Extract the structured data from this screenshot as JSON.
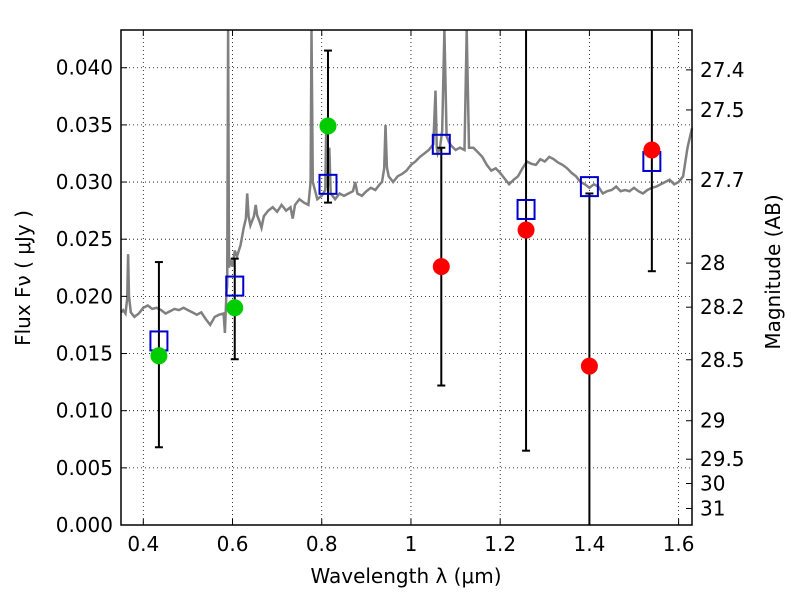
{
  "chart_data": {
    "type": "scatter",
    "xlabel": "Wavelength  λ (μm)",
    "ylabel": "Flux  Fν  ( μJy )",
    "y2label": "Magnitude (AB)",
    "xlim": [
      0.35,
      1.63
    ],
    "ylim": [
      0.0,
      0.0433
    ],
    "x_ticks": [
      0.4,
      0.6,
      0.8,
      1.0,
      1.2,
      1.4,
      1.6
    ],
    "x_tick_labels": [
      "0.4",
      "0.6",
      "0.8",
      "1",
      "1.2",
      "1.4",
      "1.6"
    ],
    "y_ticks": [
      0.0,
      0.005,
      0.01,
      0.015,
      0.02,
      0.025,
      0.03,
      0.035,
      0.04
    ],
    "y_tick_labels": [
      "0.000",
      "0.005",
      "0.010",
      "0.015",
      "0.020",
      "0.025",
      "0.030",
      "0.035",
      "0.040"
    ],
    "mag_ticks": [
      27.4,
      27.5,
      27.7,
      28,
      28.2,
      28.5,
      29,
      29.5,
      30,
      31
    ],
    "mag_tick_labels": [
      "27.4",
      "27.5",
      "27.7",
      "28",
      "28.2",
      "28.5",
      "29",
      "29.5",
      "30",
      "31"
    ],
    "grid": true,
    "colors": {
      "spectrum": "#808080",
      "model_box": "#0000cc",
      "green_points": "#00cc00",
      "red_points": "#ff0000",
      "errorbar": "#000000"
    },
    "spectrum": [
      [
        0.35,
        0.0186
      ],
      [
        0.355,
        0.0188
      ],
      [
        0.36,
        0.0185
      ],
      [
        0.364,
        0.0198
      ],
      [
        0.366,
        0.0237
      ],
      [
        0.368,
        0.02
      ],
      [
        0.372,
        0.0186
      ],
      [
        0.38,
        0.0182
      ],
      [
        0.39,
        0.0185
      ],
      [
        0.4,
        0.019
      ],
      [
        0.41,
        0.0192
      ],
      [
        0.42,
        0.0189
      ],
      [
        0.43,
        0.019
      ],
      [
        0.44,
        0.0188
      ],
      [
        0.45,
        0.0185
      ],
      [
        0.46,
        0.0187
      ],
      [
        0.47,
        0.0189
      ],
      [
        0.48,
        0.0188
      ],
      [
        0.49,
        0.019
      ],
      [
        0.5,
        0.0188
      ],
      [
        0.51,
        0.0186
      ],
      [
        0.52,
        0.0184
      ],
      [
        0.53,
        0.0186
      ],
      [
        0.54,
        0.018
      ],
      [
        0.55,
        0.0175
      ],
      [
        0.56,
        0.0182
      ],
      [
        0.57,
        0.0184
      ],
      [
        0.58,
        0.0185
      ],
      [
        0.583,
        0.0168
      ],
      [
        0.586,
        0.02
      ],
      [
        0.588,
        0.021
      ],
      [
        0.59,
        0.0433
      ],
      [
        0.592,
        0.0225
      ],
      [
        0.595,
        0.0232
      ],
      [
        0.6,
        0.0226
      ],
      [
        0.605,
        0.024
      ],
      [
        0.61,
        0.0235
      ],
      [
        0.618,
        0.0245
      ],
      [
        0.625,
        0.026
      ],
      [
        0.63,
        0.0268
      ],
      [
        0.633,
        0.029
      ],
      [
        0.636,
        0.027
      ],
      [
        0.64,
        0.0262
      ],
      [
        0.648,
        0.027
      ],
      [
        0.652,
        0.028
      ],
      [
        0.655,
        0.0271
      ],
      [
        0.66,
        0.0266
      ],
      [
        0.665,
        0.026
      ],
      [
        0.67,
        0.027
      ],
      [
        0.68,
        0.0275
      ],
      [
        0.69,
        0.0278
      ],
      [
        0.7,
        0.0274
      ],
      [
        0.71,
        0.028
      ],
      [
        0.72,
        0.0275
      ],
      [
        0.73,
        0.0278
      ],
      [
        0.735,
        0.0268
      ],
      [
        0.74,
        0.028
      ],
      [
        0.75,
        0.0285
      ],
      [
        0.76,
        0.0282
      ],
      [
        0.77,
        0.028
      ],
      [
        0.775,
        0.03
      ],
      [
        0.777,
        0.0433
      ],
      [
        0.78,
        0.03
      ],
      [
        0.79,
        0.0285
      ],
      [
        0.8,
        0.0288
      ],
      [
        0.808,
        0.0293
      ],
      [
        0.81,
        0.0348
      ],
      [
        0.812,
        0.0295
      ],
      [
        0.815,
        0.0298
      ],
      [
        0.817,
        0.033
      ],
      [
        0.82,
        0.029
      ],
      [
        0.83,
        0.0285
      ],
      [
        0.84,
        0.029
      ],
      [
        0.85,
        0.0288
      ],
      [
        0.86,
        0.029
      ],
      [
        0.87,
        0.0292
      ],
      [
        0.875,
        0.03
      ],
      [
        0.88,
        0.029
      ],
      [
        0.89,
        0.0288
      ],
      [
        0.9,
        0.0292
      ],
      [
        0.91,
        0.0295
      ],
      [
        0.92,
        0.0293
      ],
      [
        0.93,
        0.0298
      ],
      [
        0.935,
        0.03
      ],
      [
        0.94,
        0.0312
      ],
      [
        0.943,
        0.035
      ],
      [
        0.946,
        0.0313
      ],
      [
        0.95,
        0.0305
      ],
      [
        0.96,
        0.03
      ],
      [
        0.97,
        0.0305
      ],
      [
        0.98,
        0.0307
      ],
      [
        0.99,
        0.031
      ],
      [
        1.0,
        0.0315
      ],
      [
        1.01,
        0.0318
      ],
      [
        1.02,
        0.0322
      ],
      [
        1.03,
        0.0325
      ],
      [
        1.04,
        0.0328
      ],
      [
        1.05,
        0.0333
      ],
      [
        1.055,
        0.038
      ],
      [
        1.058,
        0.033
      ],
      [
        1.06,
        0.0325
      ],
      [
        1.065,
        0.033
      ],
      [
        1.07,
        0.0345
      ],
      [
        1.075,
        0.0433
      ],
      [
        1.08,
        0.034
      ],
      [
        1.085,
        0.0335
      ],
      [
        1.09,
        0.0332
      ],
      [
        1.1,
        0.0328
      ],
      [
        1.11,
        0.033
      ],
      [
        1.12,
        0.0328
      ],
      [
        1.125,
        0.0433
      ],
      [
        1.13,
        0.033
      ],
      [
        1.14,
        0.033
      ],
      [
        1.15,
        0.0326
      ],
      [
        1.16,
        0.0322
      ],
      [
        1.17,
        0.0315
      ],
      [
        1.18,
        0.031
      ],
      [
        1.19,
        0.0312
      ],
      [
        1.2,
        0.0308
      ],
      [
        1.21,
        0.0303
      ],
      [
        1.22,
        0.0298
      ],
      [
        1.23,
        0.0302
      ],
      [
        1.24,
        0.0305
      ],
      [
        1.25,
        0.0312
      ],
      [
        1.26,
        0.0318
      ],
      [
        1.27,
        0.0316
      ],
      [
        1.28,
        0.0315
      ],
      [
        1.29,
        0.032
      ],
      [
        1.3,
        0.0318
      ],
      [
        1.31,
        0.0322
      ],
      [
        1.32,
        0.032
      ],
      [
        1.33,
        0.0317
      ],
      [
        1.34,
        0.0315
      ],
      [
        1.35,
        0.0312
      ],
      [
        1.36,
        0.0308
      ],
      [
        1.37,
        0.0305
      ],
      [
        1.38,
        0.03
      ],
      [
        1.39,
        0.0298
      ],
      [
        1.4,
        0.0295
      ],
      [
        1.41,
        0.0298
      ],
      [
        1.42,
        0.0296
      ],
      [
        1.43,
        0.029
      ],
      [
        1.44,
        0.0292
      ],
      [
        1.45,
        0.0293
      ],
      [
        1.46,
        0.0296
      ],
      [
        1.47,
        0.0292
      ],
      [
        1.48,
        0.0293
      ],
      [
        1.49,
        0.0292
      ],
      [
        1.5,
        0.0295
      ],
      [
        1.51,
        0.0292
      ],
      [
        1.52,
        0.029
      ],
      [
        1.53,
        0.0293
      ],
      [
        1.54,
        0.0295
      ],
      [
        1.55,
        0.0296
      ],
      [
        1.56,
        0.0298
      ],
      [
        1.57,
        0.03
      ],
      [
        1.58,
        0.0302
      ],
      [
        1.59,
        0.0298
      ],
      [
        1.6,
        0.03
      ],
      [
        1.61,
        0.0305
      ],
      [
        1.62,
        0.033
      ],
      [
        1.63,
        0.0347
      ]
    ],
    "model_boxes": [
      {
        "x": 0.435,
        "y": 0.0161
      },
      {
        "x": 0.605,
        "y": 0.0209
      },
      {
        "x": 0.814,
        "y": 0.0298
      },
      {
        "x": 1.068,
        "y": 0.0333
      },
      {
        "x": 1.258,
        "y": 0.0276
      },
      {
        "x": 1.4,
        "y": 0.0296
      },
      {
        "x": 1.54,
        "y": 0.0318
      }
    ],
    "points": [
      {
        "x": 0.435,
        "y": 0.0148,
        "lo": 0.0068,
        "hi": 0.023,
        "color": "green"
      },
      {
        "x": 0.605,
        "y": 0.019,
        "lo": 0.0145,
        "hi": 0.0233,
        "color": "green"
      },
      {
        "x": 0.814,
        "y": 0.0349,
        "lo": 0.0282,
        "hi": 0.0415,
        "color": "green"
      },
      {
        "x": 1.068,
        "y": 0.0226,
        "lo": 0.0122,
        "hi": 0.033,
        "color": "red"
      },
      {
        "x": 1.258,
        "y": 0.0258,
        "lo": 0.0065,
        "hi": 0.0433,
        "color": "red"
      },
      {
        "x": 1.4,
        "y": 0.0139,
        "lo": 0.0,
        "hi": 0.029,
        "color": "red"
      },
      {
        "x": 1.54,
        "y": 0.0328,
        "lo": 0.0222,
        "hi": 0.0433,
        "color": "red"
      }
    ]
  }
}
